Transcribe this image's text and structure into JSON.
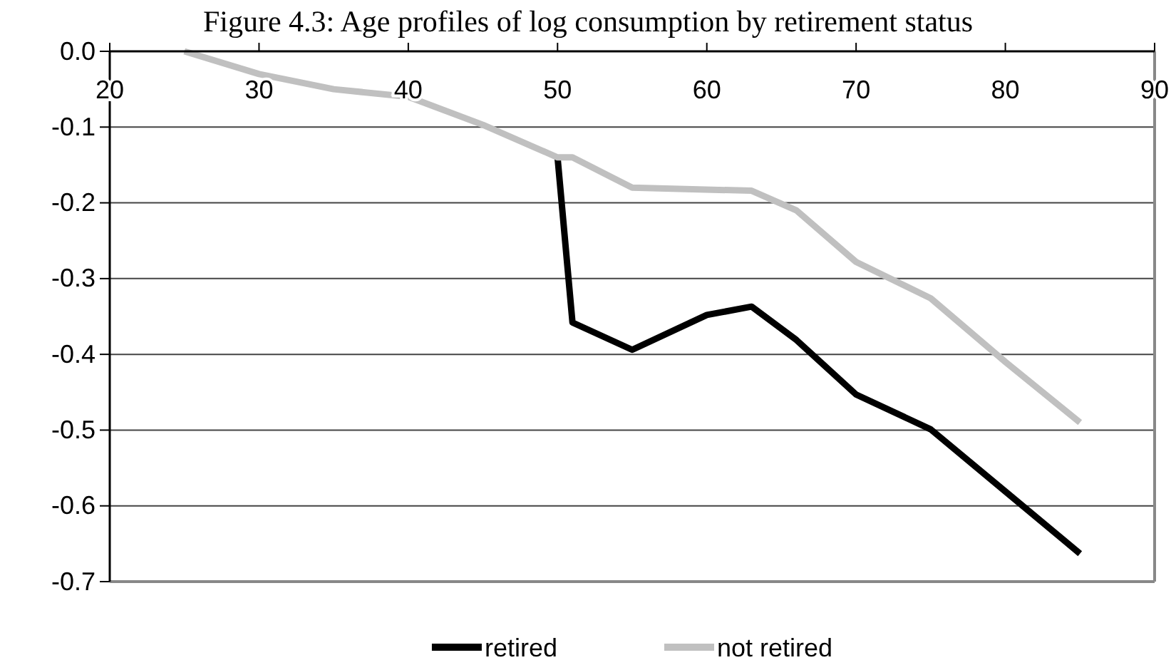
{
  "chart_data": {
    "type": "line",
    "title": "Figure 4.3: Age profiles of log consumption by retirement status",
    "xlim": [
      20,
      90
    ],
    "xticks": [
      20,
      30,
      40,
      50,
      60,
      70,
      80,
      90
    ],
    "ylim": [
      -0.7,
      0
    ],
    "yticks": [
      {
        "value": -0.7,
        "label": "-0.7"
      },
      {
        "value": -0.6,
        "label": "-0.6"
      },
      {
        "value": -0.5,
        "label": "-0.5"
      },
      {
        "value": -0.4,
        "label": "-0.4"
      },
      {
        "value": -0.3,
        "label": "-0.3"
      },
      {
        "value": -0.2,
        "label": "-0.2"
      },
      {
        "value": -0.1,
        "label": "-0.1"
      },
      {
        "value": 0,
        "label": "0.0"
      }
    ],
    "grid": "y",
    "legend": "bottom",
    "marker": "none",
    "line_style": "solid",
    "series": [
      {
        "name": "retired",
        "color": "#000000",
        "x": [
          50,
          51,
          55,
          60,
          63,
          66,
          70,
          75,
          80,
          85
        ],
        "values": [
          -0.14,
          -0.358,
          -0.394,
          -0.348,
          -0.337,
          -0.381,
          -0.453,
          -0.499,
          -0.581,
          -0.663
        ]
      },
      {
        "name": "not retired",
        "color": "#c0c0c0",
        "x": [
          25,
          30,
          35,
          40,
          45,
          50,
          51,
          55,
          63,
          66,
          70,
          75,
          80,
          85
        ],
        "values": [
          0,
          -0.03,
          -0.05,
          -0.06,
          -0.097,
          -0.14,
          -0.14,
          -0.18,
          -0.184,
          -0.21,
          -0.278,
          -0.326,
          -0.41,
          -0.49
        ]
      }
    ]
  }
}
